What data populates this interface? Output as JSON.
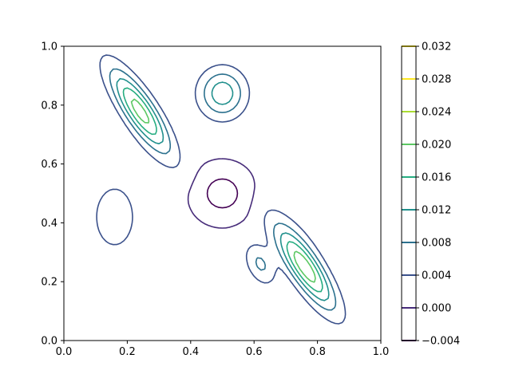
{
  "chart_data": {
    "type": "contour",
    "title": "",
    "xlabel": "",
    "ylabel": "",
    "xlim": [
      0.0,
      1.0
    ],
    "ylim": [
      0.0,
      1.0
    ],
    "x_ticks": [
      "0.0",
      "0.2",
      "0.4",
      "0.6",
      "0.8",
      "1.0"
    ],
    "y_ticks": [
      "0.0",
      "0.2",
      "0.4",
      "0.6",
      "0.8",
      "1.0"
    ],
    "grid": false,
    "colormap": "viridis",
    "levels": [
      -0.004,
      0.0,
      0.004,
      0.008,
      0.012,
      0.016,
      0.02,
      0.024,
      0.028,
      0.032
    ],
    "level_colors": [
      "#440154",
      "#472c7a",
      "#3b518b",
      "#2c718e",
      "#21908d",
      "#27ad81",
      "#5cc863",
      "#aadc32",
      "#fde725",
      "#fde725"
    ],
    "colorbar_ticks": [
      "−0.004",
      "0.000",
      "0.004",
      "0.008",
      "0.012",
      "0.016",
      "0.020",
      "0.024",
      "0.028",
      "0.032"
    ],
    "negative_levels_dashed": true
  }
}
